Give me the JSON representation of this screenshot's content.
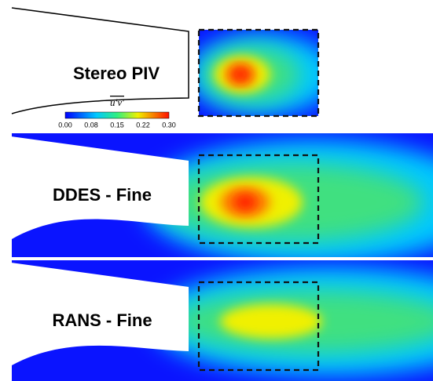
{
  "panels": [
    {
      "label": "Stereo PIV"
    },
    {
      "label": "DDES - Fine"
    },
    {
      "label": "RANS - Fine"
    }
  ],
  "colorbar": {
    "label": "u′v′",
    "ticks": [
      "0.00",
      "0.08",
      "0.15",
      "0.22",
      "0.30"
    ]
  }
}
